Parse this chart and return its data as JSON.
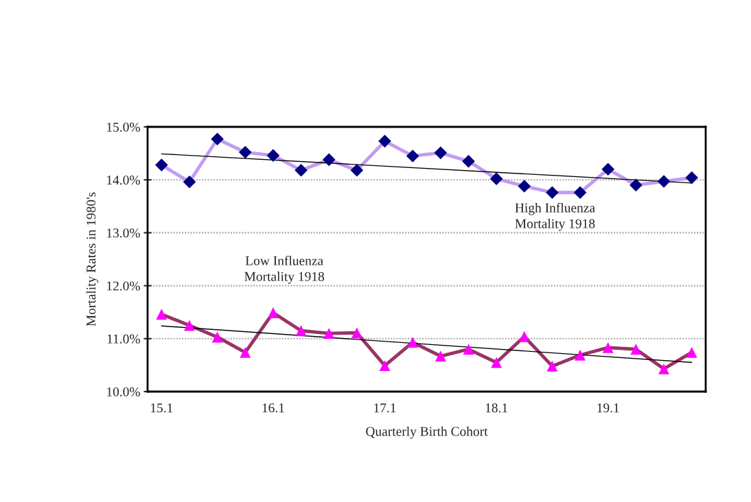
{
  "chart_data": {
    "type": "line",
    "xlabel": "Quarterly Birth Cohort",
    "ylabel": "Mortality Rates in 1980's",
    "categories": [
      "15.1",
      null,
      null,
      null,
      "16.1",
      null,
      null,
      null,
      "17.1",
      null,
      null,
      null,
      "18.1",
      null,
      null,
      null,
      "19.1",
      null,
      null,
      null
    ],
    "series": [
      {
        "color": "#c39bf0",
        "marker": "diamond",
        "colors": [
          "#000080",
          "#000080",
          "#000080",
          "#000080",
          "#000080",
          "#000080",
          "#000080",
          "#000080",
          "#000080",
          "#000080",
          "#000080",
          "#000080",
          "#000080",
          "#000080",
          "#000080",
          "#000080",
          "#000080",
          "#000080",
          "#000080",
          "#000080"
        ],
        "values": [
          14.28,
          13.96,
          14.77,
          14.52,
          14.46,
          14.18,
          14.38,
          14.18,
          14.73,
          14.45,
          14.51,
          14.35,
          14.02,
          13.88,
          13.76,
          13.76,
          14.2,
          13.9,
          13.97,
          14.04
        ]
      },
      {
        "color": "#993366",
        "marker": "triangle",
        "colors": [
          "#ff00ff",
          "#ff00ff",
          "#ff00ff",
          "#ff00ff",
          "#ff00ff",
          "#ff00ff",
          "#ff00ff",
          "#ff00ff",
          "#ff00ff",
          "#ff00ff",
          "#ff00ff",
          "#ff00ff",
          "#ff00ff",
          "#ff00ff",
          "#ff00ff",
          "#ff00ff",
          "#ff00ff",
          "#ff00ff",
          "#ff00ff",
          "#ff00ff"
        ],
        "values": [
          11.46,
          11.25,
          11.03,
          10.74,
          11.49,
          11.15,
          11.1,
          11.11,
          10.49,
          10.93,
          10.67,
          10.8,
          10.55,
          11.04,
          10.48,
          10.69,
          10.83,
          10.8,
          10.43,
          10.74
        ]
      },
      {
        "color": "#000000",
        "marker": "none",
        "values": [
          14.49,
          null,
          null,
          null,
          null,
          null,
          null,
          null,
          null,
          null,
          null,
          null,
          null,
          null,
          null,
          null,
          null,
          null,
          null,
          13.94
        ]
      },
      {
        "color": "#000000",
        "marker": "none",
        "values": [
          11.24,
          null,
          null,
          null,
          null,
          null,
          null,
          null,
          null,
          null,
          null,
          null,
          null,
          null,
          null,
          null,
          null,
          null,
          null,
          10.55
        ]
      }
    ],
    "ylim": [
      10.0,
      15.0
    ],
    "yticks": [
      {
        "value": 10.0,
        "label": "10.0%"
      },
      {
        "value": 11.0,
        "label": "11.0%"
      },
      {
        "value": 12.0,
        "label": "12.0%"
      },
      {
        "value": 13.0,
        "label": "13.0%"
      },
      {
        "value": 14.0,
        "label": "14.0%"
      },
      {
        "value": 15.0,
        "label": "15.0%"
      }
    ],
    "grid": "y",
    "annotations": [
      "Low Influenza\nMortality 1918",
      "High Influenza\nMortality 1918"
    ]
  }
}
